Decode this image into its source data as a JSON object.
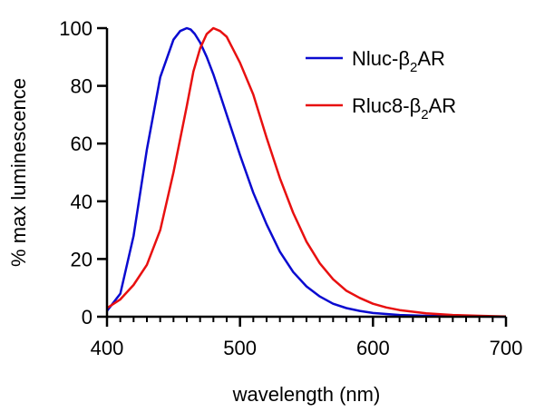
{
  "chart_data": {
    "type": "line",
    "title": "",
    "xlabel": "wavelength (nm)",
    "ylabel": "% max luminescence",
    "xlim": [
      400,
      700
    ],
    "ylim": [
      0,
      100
    ],
    "x_ticks": [
      400,
      500,
      600,
      700
    ],
    "x_tick_labels": [
      "400",
      "500",
      "600",
      "700"
    ],
    "x_minor_step": 10,
    "y_ticks": [
      0,
      20,
      40,
      60,
      80,
      100
    ],
    "y_tick_labels": [
      "0",
      "20",
      "40",
      "60",
      "80",
      "100"
    ],
    "grid": false,
    "legend_position": "top-right",
    "series": [
      {
        "name_main": "Nluc-β",
        "name_sub": "2",
        "name_tail": "AR",
        "color": "#0a0ad0",
        "x": [
          400,
          410,
          420,
          430,
          440,
          450,
          455,
          460,
          463,
          466,
          470,
          475,
          480,
          485,
          490,
          500,
          510,
          520,
          530,
          540,
          550,
          560,
          570,
          580,
          590,
          600,
          620,
          640,
          660,
          680,
          700
        ],
        "y": [
          2,
          8,
          28,
          58,
          83,
          96,
          99,
          100,
          99.5,
          98,
          95,
          90,
          84,
          77,
          70,
          56,
          43,
          32,
          22.5,
          15.5,
          10.5,
          7,
          4.5,
          3,
          2,
          1.3,
          0.6,
          0.3,
          0.15,
          0.05,
          0
        ]
      },
      {
        "name_main": "Rluc8-β",
        "name_sub": "2",
        "name_tail": "AR",
        "color": "#e81010",
        "x": [
          400,
          410,
          420,
          430,
          440,
          450,
          460,
          465,
          470,
          475,
          480,
          485,
          490,
          500,
          510,
          520,
          530,
          540,
          550,
          560,
          570,
          580,
          590,
          600,
          610,
          620,
          640,
          660,
          680,
          700
        ],
        "y": [
          3,
          6,
          11,
          18,
          30,
          50,
          73,
          85,
          93,
          98,
          100,
          99,
          97,
          88,
          77,
          62,
          48,
          36,
          26,
          18.5,
          13,
          9,
          6.5,
          4.5,
          3.2,
          2.3,
          1.2,
          0.6,
          0.3,
          0.1
        ]
      }
    ]
  }
}
